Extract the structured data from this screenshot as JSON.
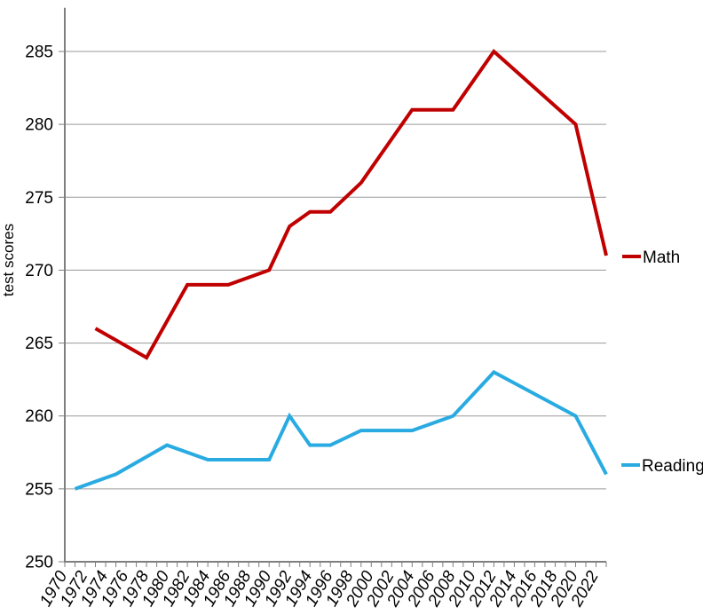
{
  "chart_data": {
    "type": "line",
    "title": "",
    "xlabel": "",
    "ylabel": "test scores",
    "xlim": [
      1970,
      2023
    ],
    "ylim": [
      250,
      288
    ],
    "y_ticks": [
      250,
      255,
      260,
      265,
      270,
      275,
      280,
      285
    ],
    "x_tick_years": [
      1970,
      1972,
      1974,
      1976,
      1978,
      1980,
      1982,
      1984,
      1986,
      1988,
      1990,
      1992,
      1994,
      1996,
      1998,
      2000,
      2002,
      2004,
      2006,
      2008,
      2010,
      2012,
      2014,
      2016,
      2018,
      2020,
      2022
    ],
    "x_minor_tick_step": 1,
    "grid": "horizontal-only",
    "legend_position": "right-of-plot",
    "series": [
      {
        "name": "Math",
        "color": "#C00000",
        "x": [
          1973,
          1978,
          1982,
          1986,
          1990,
          1992,
          1994,
          1996,
          1999,
          2004,
          2008,
          2012,
          2020,
          2023
        ],
        "values": [
          266,
          264,
          269,
          269,
          270,
          273,
          274,
          274,
          276,
          281,
          281,
          285,
          280,
          271
        ]
      },
      {
        "name": "Reading",
        "color": "#29ABE2",
        "x": [
          1971,
          1975,
          1980,
          1984,
          1988,
          1990,
          1992,
          1994,
          1996,
          1999,
          2004,
          2008,
          2012,
          2020,
          2023
        ],
        "values": [
          255,
          256,
          258,
          257,
          257,
          257,
          260,
          258,
          258,
          259,
          259,
          260,
          263,
          260,
          256
        ]
      }
    ]
  },
  "style": {
    "axis_color": "#7F7F7F",
    "gridline_color": "#9A9A9A",
    "tick_color": "#7F7F7F",
    "text_color": "#000000",
    "background": "#FFFFFF"
  }
}
